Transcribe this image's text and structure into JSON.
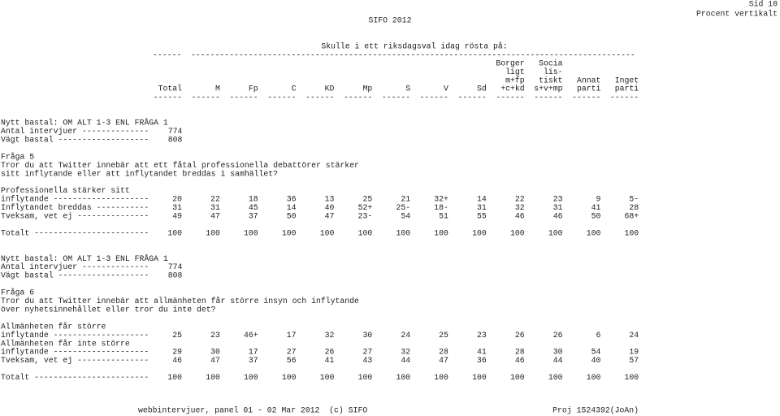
{
  "header": {
    "center": "SIFO 2012",
    "page": "Sid 10",
    "mode": "Procent vertikalt"
  },
  "title": "Skulle i ett riksdagsval idag rösta på:",
  "title_rule": "------  ---------------------------------------------------------------------------------------------",
  "columns": [
    [
      "Total"
    ],
    [
      "M"
    ],
    [
      "Fp"
    ],
    [
      "C"
    ],
    [
      "KD"
    ],
    [
      "Mp"
    ],
    [
      "S"
    ],
    [
      "V"
    ],
    [
      "Sd"
    ],
    [
      "Borger",
      "ligt",
      "m+fp",
      "+c+kd"
    ],
    [
      "Socia",
      "lis-",
      "tiskt",
      "s+v+mp"
    ],
    [
      "Annat",
      "parti"
    ],
    [
      "Inget",
      "parti"
    ]
  ],
  "column_rule": "------",
  "sections": [
    {
      "base": [
        "Nytt bastal: OM ALT 1-3 ENL FRÅGA 1",
        "Antal intervjuer --------------    774",
        "Vägt bastal -------------------    808"
      ],
      "question": [
        "Fråga 5",
        "Tror du att Twitter innebär att ett fåtal professionella debattörer stärker",
        "sitt inflytande eller att inflytandet breddas i samhället?"
      ],
      "rows": [
        {
          "label": [
            "Professionella stärker sitt",
            "inflytande --------------------"
          ],
          "cells": [
            "20",
            "22",
            "18",
            "36",
            "13",
            "25",
            "21",
            "32+",
            "14",
            "22",
            "23",
            "9",
            "5-"
          ]
        },
        {
          "label": [
            "Inflytandet breddas -----------"
          ],
          "cells": [
            "31",
            "31",
            "45",
            "14",
            "40",
            "52+",
            "25-",
            "18-",
            "31",
            "32",
            "31",
            "41",
            "28"
          ]
        },
        {
          "label": [
            "Tveksam, vet ej ---------------"
          ],
          "cells": [
            "49",
            "47",
            "37",
            "50",
            "47",
            "23-",
            "54",
            "51",
            "55",
            "46",
            "46",
            "50",
            "68+"
          ]
        }
      ],
      "total": {
        "label": "Totalt ------------------------",
        "cells": [
          "100",
          "100",
          "100",
          "100",
          "100",
          "100",
          "100",
          "100",
          "100",
          "100",
          "100",
          "100",
          "100"
        ]
      }
    },
    {
      "base": [
        "Nytt bastal: OM ALT 1-3 ENL FRÅGA 1",
        "Antal intervjuer --------------    774",
        "Vägt bastal -------------------    808"
      ],
      "question": [
        "Fråga 6",
        "Tror du att Twitter innebär att allmänheten får större insyn och inflytande",
        "över nyhetsinnehållet eller tror du inte det?"
      ],
      "rows": [
        {
          "label": [
            "Allmänheten får större",
            "inflytande --------------------"
          ],
          "cells": [
            "25",
            "23",
            "46+",
            "17",
            "32",
            "30",
            "24",
            "25",
            "23",
            "26",
            "26",
            "6",
            "24"
          ]
        },
        {
          "label": [
            "Allmänheten får inte större",
            "inflytande --------------------"
          ],
          "cells": [
            "29",
            "30",
            "17",
            "27",
            "26",
            "27",
            "32",
            "28",
            "41",
            "28",
            "30",
            "54",
            "19"
          ]
        },
        {
          "label": [
            "Tveksam, vet ej ---------------"
          ],
          "cells": [
            "46",
            "47",
            "37",
            "56",
            "41",
            "43",
            "44",
            "47",
            "36",
            "46",
            "44",
            "40",
            "57"
          ]
        }
      ],
      "total": {
        "label": "Totalt ------------------------",
        "cells": [
          "100",
          "100",
          "100",
          "100",
          "100",
          "100",
          "100",
          "100",
          "100",
          "100",
          "100",
          "100",
          "100"
        ]
      }
    }
  ],
  "footer": {
    "left": "webbintervjuer, panel 01 - 02 Mar 2012  (c) SIFO",
    "right": "Proj 1524392(JoAn)"
  }
}
